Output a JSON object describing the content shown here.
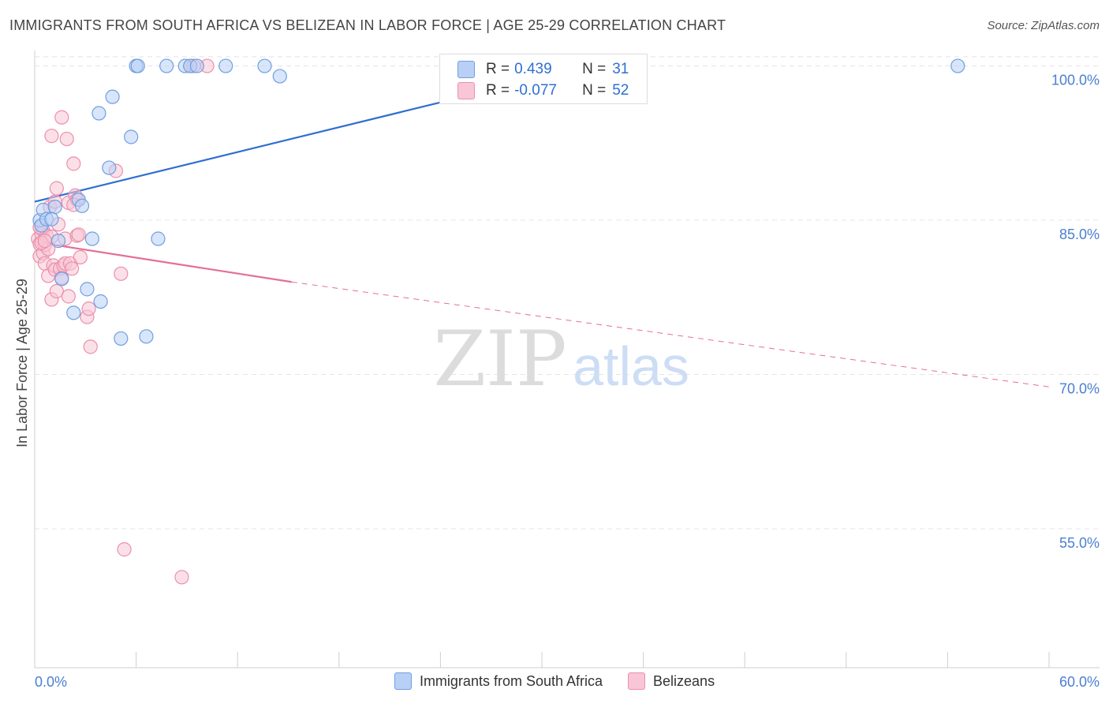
{
  "header": {
    "title": "IMMIGRANTS FROM SOUTH AFRICA VS BELIZEAN IN LABOR FORCE | AGE 25-29 CORRELATION CHART",
    "source": "Source: ZipAtlas.com"
  },
  "watermark": {
    "zip": "ZIP",
    "atlas": "atlas"
  },
  "stats": {
    "r_label": "R =",
    "n_label": "N =",
    "blue": {
      "r": "0.439",
      "n": "31"
    },
    "pink": {
      "r": "-0.077",
      "n": "52"
    }
  },
  "colors": {
    "blue_fill": "#b8d0f5",
    "blue_stroke": "#6f9fe0",
    "blue_line": "#2f6fd0",
    "pink_fill": "#f8c6d6",
    "pink_stroke": "#ec8fad",
    "pink_line": "#e56f96",
    "axis_text": "#4a7fd1"
  },
  "chart_data": {
    "type": "scatter",
    "title": "IMMIGRANTS FROM SOUTH AFRICA VS BELIZEAN IN LABOR FORCE | AGE 25-29 CORRELATION CHART",
    "xlabel": "",
    "ylabel": "In Labor Force | Age 25-29",
    "xlim": [
      0,
      60
    ],
    "ylim": [
      41.5,
      101.5
    ],
    "x_tick_labels": [
      "0.0%",
      "60.0%"
    ],
    "y_ticks": [
      100,
      85,
      70,
      55
    ],
    "y_tick_labels": [
      "100.0%",
      "85.0%",
      "70.0%",
      "55.0%"
    ],
    "grid": true,
    "legend_position": "bottom",
    "series": [
      {
        "name": "Immigrants from South Africa",
        "color": "#6f9fe0",
        "points": [
          [
            0.3,
            85.0
          ],
          [
            0.4,
            84.5
          ],
          [
            0.5,
            86.0
          ],
          [
            0.7,
            85.1
          ],
          [
            1.2,
            86.3
          ],
          [
            1.4,
            83.0
          ],
          [
            1.6,
            79.3
          ],
          [
            2.3,
            76.0
          ],
          [
            2.6,
            87.0
          ],
          [
            2.8,
            86.4
          ],
          [
            3.1,
            78.3
          ],
          [
            3.4,
            83.2
          ],
          [
            3.9,
            77.1
          ],
          [
            3.8,
            95.4
          ],
          [
            4.4,
            90.1
          ],
          [
            4.6,
            97.0
          ],
          [
            5.1,
            73.5
          ],
          [
            5.7,
            93.1
          ],
          [
            6.0,
            100.0
          ],
          [
            6.1,
            100.0
          ],
          [
            6.6,
            73.7
          ],
          [
            7.3,
            83.2
          ],
          [
            7.8,
            100.0
          ],
          [
            8.9,
            100.0
          ],
          [
            9.2,
            100.0
          ],
          [
            9.6,
            100.0
          ],
          [
            11.3,
            100.0
          ],
          [
            13.6,
            100.0
          ],
          [
            14.5,
            99.0
          ],
          [
            54.6,
            100.0
          ],
          [
            1.0,
            85.1
          ]
        ],
        "trend": {
          "x": [
            0,
            33.3
          ],
          "y": [
            86.8,
            100.2
          ],
          "style": "solid"
        }
      },
      {
        "name": "Belizeans",
        "color": "#ec8fad",
        "points": [
          [
            0.2,
            83.2
          ],
          [
            0.3,
            82.7
          ],
          [
            0.3,
            81.5
          ],
          [
            0.4,
            83.7
          ],
          [
            0.5,
            84.0
          ],
          [
            0.5,
            81.8
          ],
          [
            0.6,
            82.6
          ],
          [
            0.6,
            80.8
          ],
          [
            0.7,
            83.5
          ],
          [
            0.8,
            79.6
          ],
          [
            0.8,
            82.2
          ],
          [
            0.9,
            86.3
          ],
          [
            1.0,
            83.4
          ],
          [
            1.0,
            93.2
          ],
          [
            1.0,
            77.3
          ],
          [
            1.1,
            80.6
          ],
          [
            1.2,
            80.2
          ],
          [
            1.2,
            86.8
          ],
          [
            1.3,
            88.1
          ],
          [
            1.3,
            78.1
          ],
          [
            1.4,
            84.6
          ],
          [
            1.5,
            80.3
          ],
          [
            1.6,
            79.4
          ],
          [
            1.6,
            95.0
          ],
          [
            1.7,
            80.6
          ],
          [
            1.8,
            80.8
          ],
          [
            1.8,
            83.2
          ],
          [
            2.0,
            86.7
          ],
          [
            2.0,
            77.6
          ],
          [
            1.9,
            92.9
          ],
          [
            2.1,
            80.8
          ],
          [
            2.2,
            80.3
          ],
          [
            2.3,
            90.5
          ],
          [
            2.4,
            87.4
          ],
          [
            2.5,
            87.0
          ],
          [
            2.5,
            83.5
          ],
          [
            2.6,
            83.6
          ],
          [
            2.7,
            81.4
          ],
          [
            3.1,
            75.6
          ],
          [
            3.2,
            76.4
          ],
          [
            3.3,
            72.7
          ],
          [
            4.8,
            89.8
          ],
          [
            5.1,
            79.8
          ],
          [
            5.3,
            53.0
          ],
          [
            8.7,
            50.3
          ],
          [
            9.2,
            100.0
          ],
          [
            9.4,
            100.0
          ],
          [
            10.2,
            100.0
          ],
          [
            0.3,
            84.3
          ],
          [
            0.4,
            82.8
          ],
          [
            0.6,
            83.0
          ],
          [
            2.3,
            86.5
          ]
        ],
        "trend": {
          "x": [
            0,
            15.2
          ],
          "y": [
            82.9,
            79.0
          ],
          "style": "solid",
          "extended_to": [
            60,
            68.8
          ],
          "extended_style": "dashed"
        }
      }
    ]
  },
  "legend": {
    "blue_label": "Immigrants from South Africa",
    "pink_label": "Belizeans"
  }
}
